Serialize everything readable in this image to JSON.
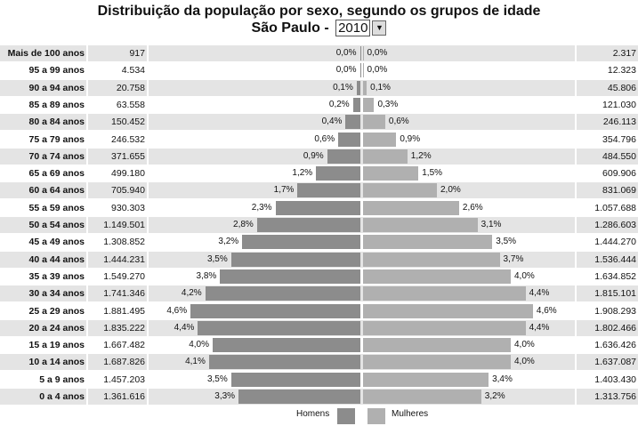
{
  "title": "Distribuição da população por sexo, segundo os grupos de idade",
  "location": "São Paulo -",
  "year_select": {
    "value": "2010",
    "icon": "chevron-down-icon"
  },
  "colors": {
    "men": "#8c8c8c",
    "women": "#b0b0b0",
    "row_alt": "#e4e4e4"
  },
  "chart_data": {
    "type": "bar",
    "orientation": "horizontal-pyramid",
    "categories": [
      "Mais de 100 anos",
      "95 a 99 anos",
      "90 a 94 anos",
      "85 a 89 anos",
      "80 a 84 anos",
      "75 a 79 anos",
      "70 a 74 anos",
      "65 a 69 anos",
      "60 a 64 anos",
      "55 a 59 anos",
      "50 a 54 anos",
      "45 a 49 anos",
      "40 a 44 anos",
      "35 a 39 anos",
      "30 a 34 anos",
      "25 a 29 anos",
      "20 a 24 anos",
      "15 a 19 anos",
      "10 a 14 anos",
      "5 a 9 anos",
      "0 a 4 anos"
    ],
    "series": [
      {
        "name": "Homens",
        "counts": [
          "917",
          "4.534",
          "20.758",
          "63.558",
          "150.452",
          "246.532",
          "371.655",
          "499.180",
          "705.940",
          "930.303",
          "1.149.501",
          "1.308.852",
          "1.444.231",
          "1.549.270",
          "1.741.346",
          "1.881.495",
          "1.835.222",
          "1.667.482",
          "1.687.826",
          "1.457.203",
          "1.361.616"
        ],
        "percent": [
          0.0,
          0.0,
          0.1,
          0.2,
          0.4,
          0.6,
          0.9,
          1.2,
          1.7,
          2.3,
          2.8,
          3.2,
          3.5,
          3.8,
          4.2,
          4.6,
          4.4,
          4.0,
          4.1,
          3.5,
          3.3
        ],
        "labels": [
          "0,0%",
          "0,0%",
          "0,1%",
          "0,2%",
          "0,4%",
          "0,6%",
          "0,9%",
          "1,2%",
          "1,7%",
          "2,3%",
          "2,8%",
          "3,2%",
          "3,5%",
          "3,8%",
          "4,2%",
          "4,6%",
          "4,4%",
          "4,0%",
          "4,1%",
          "3,5%",
          "3,3%"
        ]
      },
      {
        "name": "Mulheres",
        "counts": [
          "2.317",
          "12.323",
          "45.806",
          "121.030",
          "246.113",
          "354.796",
          "484.550",
          "609.906",
          "831.069",
          "1.057.688",
          "1.286.603",
          "1.444.270",
          "1.536.444",
          "1.634.852",
          "1.815.101",
          "1.908.293",
          "1.802.466",
          "1.636.426",
          "1.637.087",
          "1.403.430",
          "1.313.756"
        ],
        "percent": [
          0.0,
          0.0,
          0.1,
          0.3,
          0.6,
          0.9,
          1.2,
          1.5,
          2.0,
          2.6,
          3.1,
          3.5,
          3.7,
          4.0,
          4.4,
          4.6,
          4.4,
          4.0,
          4.0,
          3.4,
          3.2
        ],
        "labels": [
          "0,0%",
          "0,0%",
          "0,1%",
          "0,3%",
          "0,6%",
          "0,9%",
          "1,2%",
          "1,5%",
          "2,0%",
          "2,6%",
          "3,1%",
          "3,5%",
          "3,7%",
          "4,0%",
          "4,4%",
          "4,6%",
          "4,4%",
          "4,0%",
          "4,0%",
          "3,4%",
          "3,2%"
        ]
      }
    ],
    "legend": "bottom"
  },
  "legend": {
    "men": "Homens",
    "women": "Mulheres"
  }
}
